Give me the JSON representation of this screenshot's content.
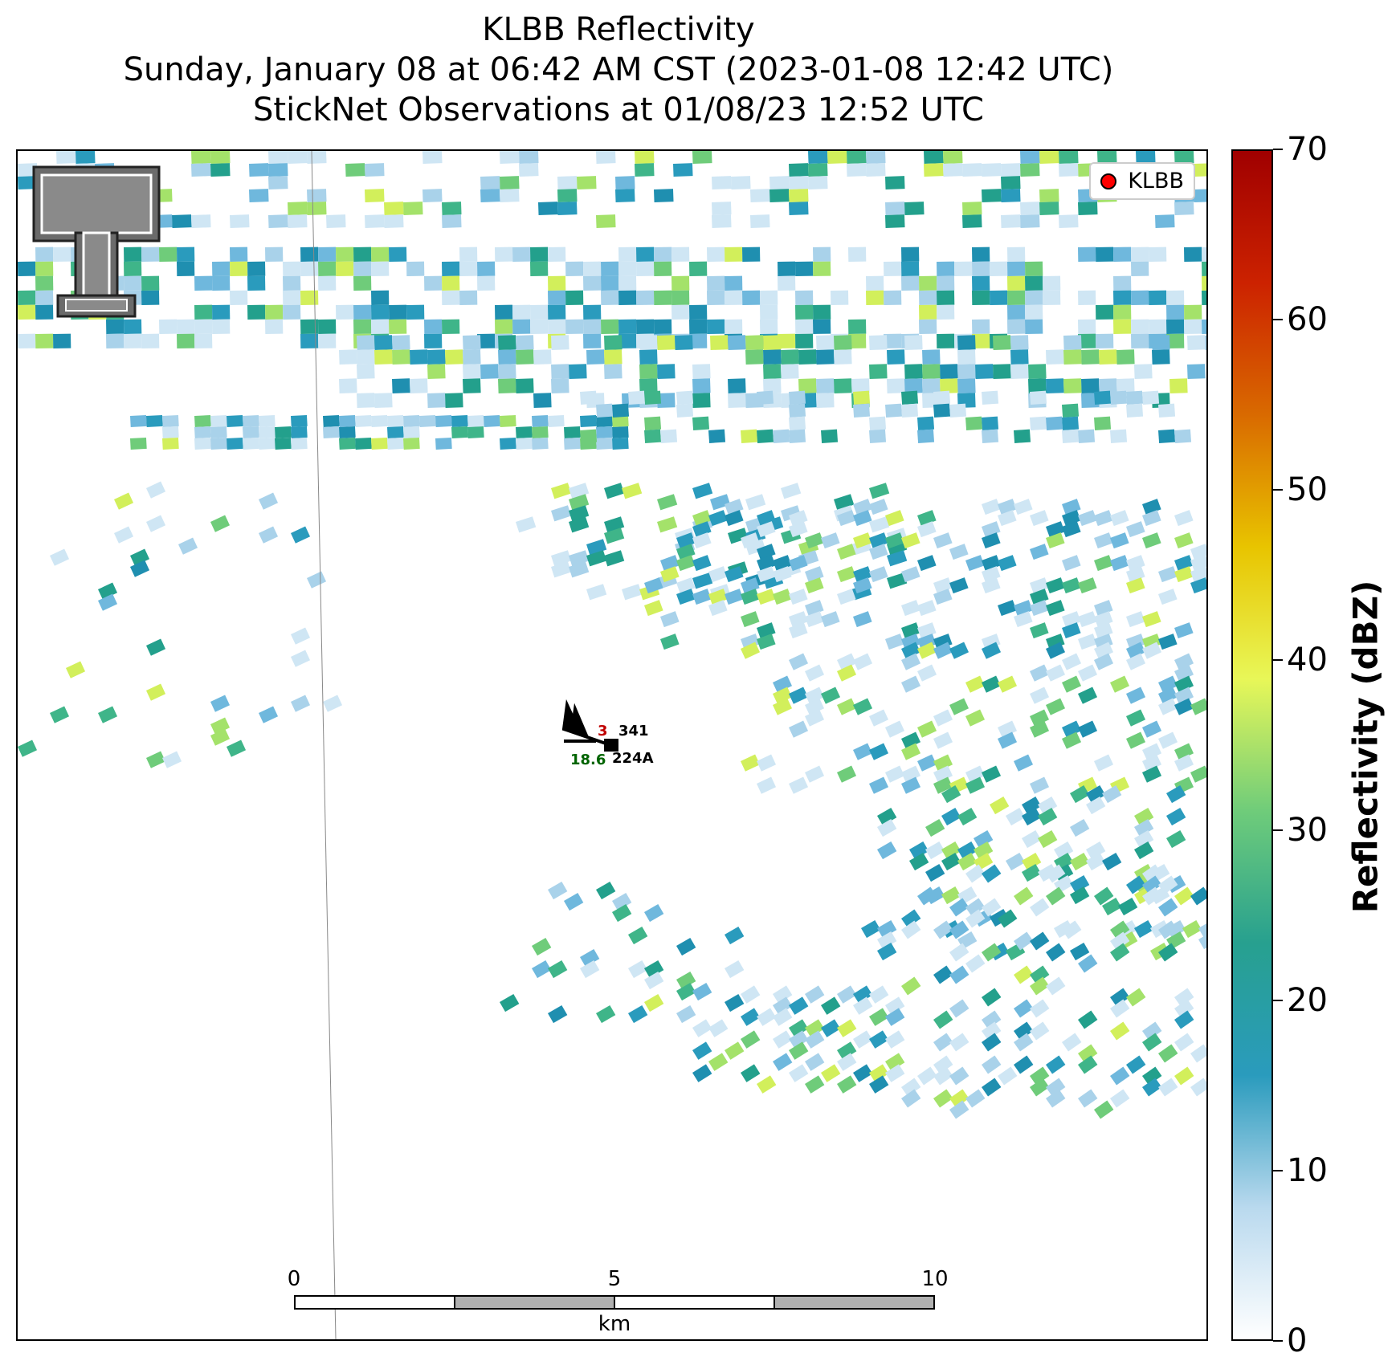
{
  "title": {
    "line1": "KLBB Reflectivity",
    "line2": "Sunday, January 08 at 06:42 AM CST (2023-01-08 12:42 UTC)",
    "line3": "StickNet Observations at 01/08/23 12:52 UTC"
  },
  "legend": {
    "label": "KLBB",
    "marker_color": "#ff0000"
  },
  "station": {
    "id": "224A",
    "value_top": "341",
    "value_left_red": "3",
    "value_bottom_green": "18.6",
    "colors": {
      "red": "#c00000",
      "green": "#006400",
      "black": "#000000"
    }
  },
  "scale_bar": {
    "ticks": [
      "0",
      "5",
      "10"
    ],
    "unit": "km"
  },
  "colorbar": {
    "title": "Reflectivity (dBZ)",
    "range": [
      0,
      70
    ],
    "ticks": [
      "0",
      "10",
      "20",
      "30",
      "40",
      "50",
      "60",
      "70"
    ],
    "stops": [
      "#ffffff",
      "#b9d9ee",
      "#2a9bbd",
      "#27a08f",
      "#6fcc7a",
      "#e8f758",
      "#e8c400",
      "#d96a00",
      "#cc2200",
      "#a00000"
    ]
  },
  "palette": [
    "#cfe6f4",
    "#a9d2ea",
    "#6fb8dd",
    "#2a9bbd",
    "#1f8fb0",
    "#23a08c",
    "#3fb589",
    "#6fcc7a",
    "#a4e26a",
    "#d2ef5b"
  ]
}
